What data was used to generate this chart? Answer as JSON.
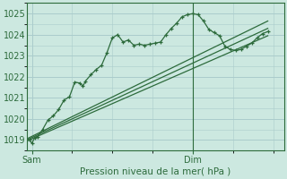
{
  "title": "Pression niveau de la mer( hPa )",
  "bg_color": "#cce8e0",
  "grid_color": "#aacccc",
  "line_color": "#2d6b3c",
  "ylim": [
    1018.5,
    1025.5
  ],
  "xlim": [
    0,
    48
  ],
  "yticks": [
    1019,
    1020,
    1021,
    1022,
    1023,
    1024,
    1025
  ],
  "xtick_positions": [
    1,
    31
  ],
  "xtick_labels": [
    "Sam",
    "Dim"
  ],
  "vline_x": 31,
  "series": {
    "main": [
      [
        0,
        1019.0
      ],
      [
        0.5,
        1019.0
      ],
      [
        1,
        1018.85
      ],
      [
        1.5,
        1019.1
      ],
      [
        2,
        1019.15
      ],
      [
        3,
        1019.5
      ],
      [
        4,
        1019.95
      ],
      [
        5,
        1020.15
      ],
      [
        6,
        1020.45
      ],
      [
        7,
        1020.9
      ],
      [
        8,
        1021.05
      ],
      [
        9,
        1021.75
      ],
      [
        10,
        1021.7
      ],
      [
        10.5,
        1021.55
      ],
      [
        11,
        1021.8
      ],
      [
        12,
        1022.1
      ],
      [
        13,
        1022.35
      ],
      [
        14,
        1022.55
      ],
      [
        15,
        1023.15
      ],
      [
        16,
        1023.85
      ],
      [
        17,
        1024.0
      ],
      [
        18,
        1023.65
      ],
      [
        19,
        1023.75
      ],
      [
        20,
        1023.5
      ],
      [
        21,
        1023.55
      ],
      [
        22,
        1023.5
      ],
      [
        23,
        1023.55
      ],
      [
        24,
        1023.6
      ],
      [
        25,
        1023.65
      ],
      [
        26,
        1024.0
      ],
      [
        27,
        1024.3
      ],
      [
        28,
        1024.55
      ],
      [
        29,
        1024.85
      ],
      [
        30,
        1024.95
      ],
      [
        31,
        1025.0
      ],
      [
        32,
        1024.95
      ],
      [
        33,
        1024.65
      ],
      [
        34,
        1024.25
      ],
      [
        35,
        1024.1
      ],
      [
        36,
        1023.95
      ],
      [
        37,
        1023.45
      ],
      [
        38,
        1023.3
      ],
      [
        39,
        1023.25
      ],
      [
        40,
        1023.3
      ],
      [
        41,
        1023.45
      ],
      [
        42,
        1023.6
      ],
      [
        43,
        1023.85
      ],
      [
        44,
        1024.05
      ],
      [
        45,
        1024.15
      ]
    ],
    "line1": [
      [
        0,
        1019.05
      ],
      [
        45,
        1024.65
      ]
    ],
    "line2": [
      [
        0,
        1018.95
      ],
      [
        45,
        1023.95
      ]
    ],
    "line3": [
      [
        0,
        1019.0
      ],
      [
        45,
        1024.3
      ]
    ]
  }
}
